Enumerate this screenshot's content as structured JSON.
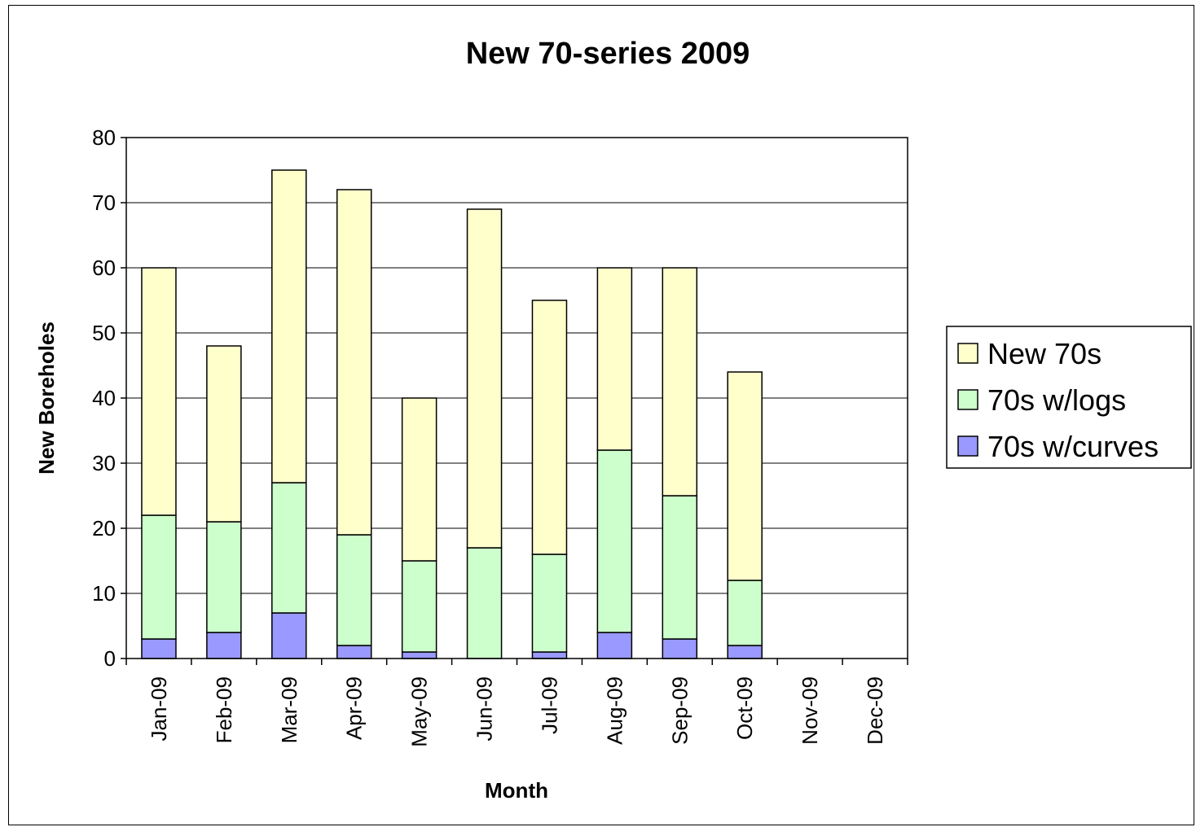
{
  "chart_data": {
    "type": "bar",
    "stacked": true,
    "title": "New 70-series 2009",
    "xlabel": "Month",
    "ylabel": "New Boreholes",
    "ylim": [
      0,
      80
    ],
    "yticks": [
      0,
      10,
      20,
      30,
      40,
      50,
      60,
      70,
      80
    ],
    "grid": true,
    "legend_position": "right",
    "categories": [
      "Jan-09",
      "Feb-09",
      "Mar-09",
      "Apr-09",
      "May-09",
      "Jun-09",
      "Jul-09",
      "Aug-09",
      "Sep-09",
      "Oct-09",
      "Nov-09",
      "Dec-09"
    ],
    "series": [
      {
        "name": "70s w/curves",
        "color": "#9999ff",
        "values": [
          3,
          4,
          7,
          2,
          1,
          0,
          1,
          4,
          3,
          2,
          0,
          0
        ]
      },
      {
        "name": "70s w/logs",
        "color": "#ccffcc",
        "values": [
          19,
          17,
          20,
          17,
          14,
          17,
          15,
          28,
          22,
          10,
          0,
          0
        ]
      },
      {
        "name": "New 70s",
        "color": "#ffffcc",
        "values": [
          38,
          27,
          48,
          53,
          25,
          52,
          39,
          28,
          35,
          32,
          0,
          0
        ]
      }
    ],
    "legend_order": [
      "New 70s",
      "70s w/logs",
      "70s w/curves"
    ]
  }
}
